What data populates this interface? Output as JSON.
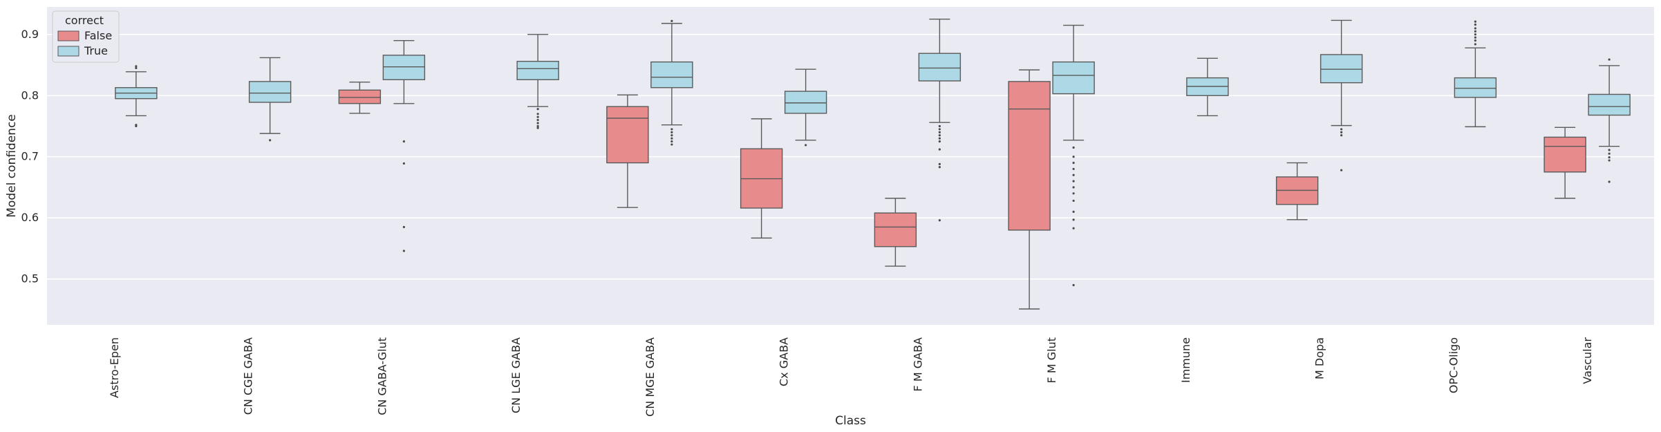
{
  "chart_data": {
    "type": "box",
    "xlabel": "Class",
    "ylabel": "Model confidence",
    "ylim": [
      0.425,
      0.945
    ],
    "yticks": [
      0.5,
      0.6,
      0.7,
      0.8,
      0.9
    ],
    "grid": true,
    "legend": {
      "title": "correct",
      "position": "top-left",
      "entries": [
        {
          "label": "False",
          "color": "#e88b8d"
        },
        {
          "label": "True",
          "color": "#add8e6"
        }
      ]
    },
    "categories": [
      "Astro-Epen",
      "CN CGE GABA",
      "CN GABA-Glut",
      "CN LGE GABA",
      "CN MGE GABA",
      "Cx GABA",
      "F M GABA",
      "F M Glut",
      "Immune",
      "M Dopa",
      "OPC-Oligo",
      "Vascular"
    ],
    "series": [
      {
        "name": "False",
        "color": "#e88b8d",
        "boxes": [
          null,
          null,
          {
            "whislo": 0.771,
            "q1": 0.787,
            "med": 0.797,
            "q3": 0.809,
            "whishi": 0.822,
            "fliers": []
          },
          null,
          {
            "whislo": 0.617,
            "q1": 0.69,
            "med": 0.763,
            "q3": 0.782,
            "whishi": 0.801,
            "fliers": []
          },
          {
            "whislo": 0.567,
            "q1": 0.616,
            "med": 0.664,
            "q3": 0.713,
            "whishi": 0.762,
            "fliers": []
          },
          {
            "whislo": 0.521,
            "q1": 0.553,
            "med": 0.585,
            "q3": 0.608,
            "whishi": 0.632,
            "fliers": []
          },
          {
            "whislo": 0.451,
            "q1": 0.58,
            "med": 0.778,
            "q3": 0.823,
            "whishi": 0.842,
            "fliers": []
          },
          null,
          {
            "whislo": 0.597,
            "q1": 0.622,
            "med": 0.645,
            "q3": 0.667,
            "whishi": 0.69,
            "fliers": []
          },
          null,
          {
            "whislo": 0.632,
            "q1": 0.675,
            "med": 0.717,
            "q3": 0.732,
            "whishi": 0.748,
            "fliers": []
          }
        ]
      },
      {
        "name": "True",
        "color": "#add8e6",
        "boxes": [
          {
            "whislo": 0.767,
            "q1": 0.795,
            "med": 0.804,
            "q3": 0.813,
            "whishi": 0.839,
            "fliers": [
              0.752,
              0.75,
              0.845,
              0.848
            ]
          },
          {
            "whislo": 0.738,
            "q1": 0.789,
            "med": 0.804,
            "q3": 0.823,
            "whishi": 0.862,
            "fliers": [
              0.727
            ]
          },
          {
            "whislo": 0.787,
            "q1": 0.826,
            "med": 0.847,
            "q3": 0.866,
            "whishi": 0.89,
            "fliers": [
              0.725,
              0.689,
              0.585,
              0.546
            ]
          },
          {
            "whislo": 0.782,
            "q1": 0.826,
            "med": 0.844,
            "q3": 0.856,
            "whishi": 0.9,
            "fliers": [
              0.778,
              0.77,
              0.765,
              0.76,
              0.755,
              0.75,
              0.747
            ]
          },
          {
            "whislo": 0.752,
            "q1": 0.813,
            "med": 0.83,
            "q3": 0.855,
            "whishi": 0.918,
            "fliers": [
              0.745,
              0.74,
              0.735,
              0.73,
              0.725,
              0.72,
              0.922
            ]
          },
          {
            "whislo": 0.727,
            "q1": 0.771,
            "med": 0.788,
            "q3": 0.807,
            "whishi": 0.843,
            "fliers": [
              0.719
            ]
          },
          {
            "whislo": 0.756,
            "q1": 0.824,
            "med": 0.845,
            "q3": 0.869,
            "whishi": 0.925,
            "fliers": [
              0.75,
              0.745,
              0.74,
              0.735,
              0.73,
              0.725,
              0.712,
              0.688,
              0.683,
              0.596
            ]
          },
          {
            "whislo": 0.727,
            "q1": 0.803,
            "med": 0.833,
            "q3": 0.855,
            "whishi": 0.915,
            "fliers": [
              0.715,
              0.7,
              0.69,
              0.68,
              0.67,
              0.66,
              0.65,
              0.64,
              0.628,
              0.61,
              0.597,
              0.583,
              0.49
            ]
          },
          {
            "whislo": 0.767,
            "q1": 0.8,
            "med": 0.815,
            "q3": 0.829,
            "whishi": 0.861,
            "fliers": []
          },
          {
            "whislo": 0.751,
            "q1": 0.821,
            "med": 0.843,
            "q3": 0.867,
            "whishi": 0.923,
            "fliers": [
              0.745,
              0.74,
              0.735,
              0.678
            ]
          },
          {
            "whislo": 0.749,
            "q1": 0.797,
            "med": 0.812,
            "q3": 0.829,
            "whishi": 0.878,
            "fliers": [
              0.884,
              0.89,
              0.895,
              0.9,
              0.905,
              0.91,
              0.916,
              0.921
            ]
          },
          {
            "whislo": 0.717,
            "q1": 0.768,
            "med": 0.782,
            "q3": 0.802,
            "whishi": 0.849,
            "fliers": [
              0.711,
              0.705,
              0.699,
              0.694,
              0.659,
              0.859
            ]
          }
        ]
      }
    ]
  }
}
